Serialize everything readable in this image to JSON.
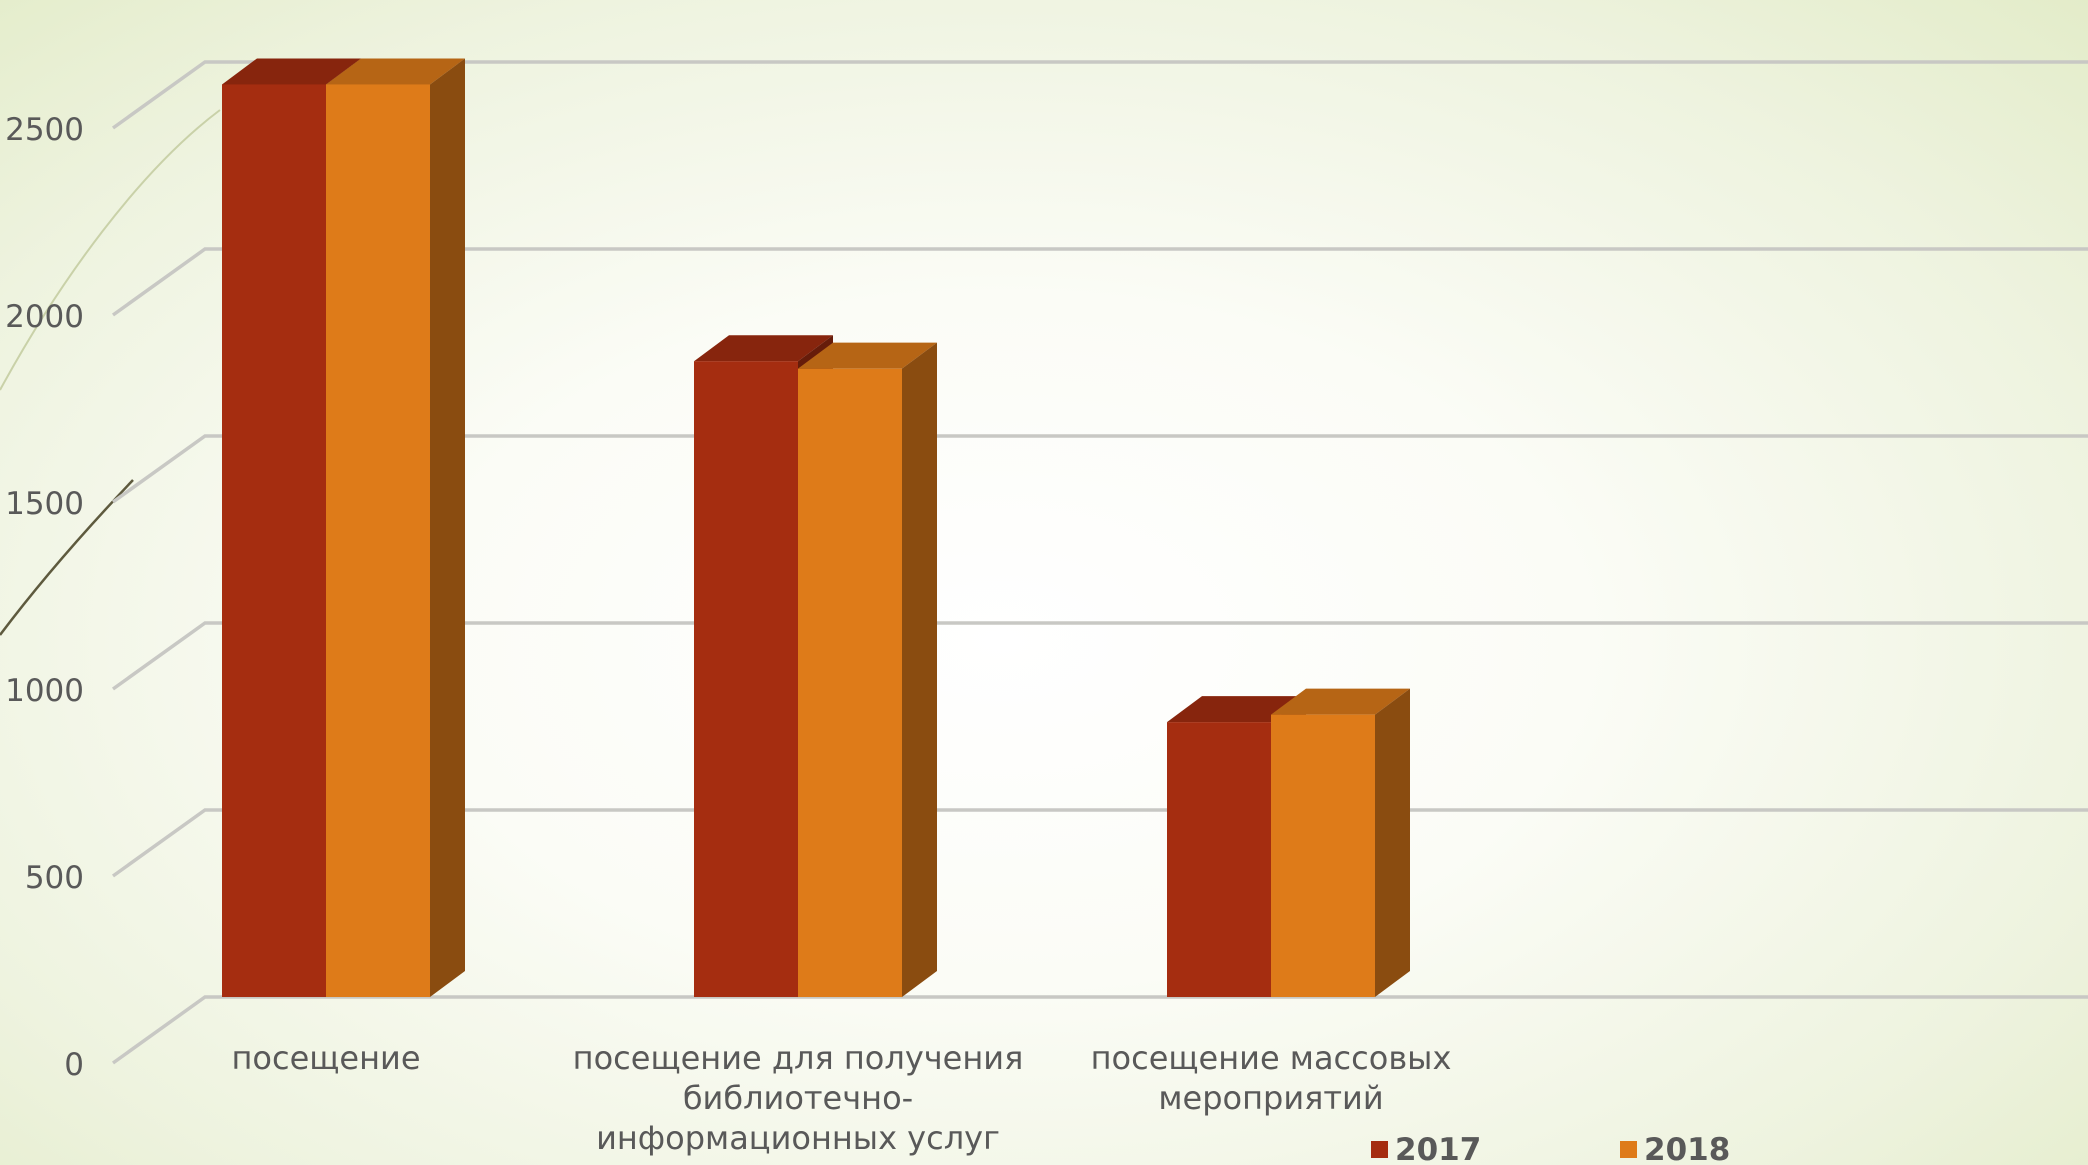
{
  "chart_data": {
    "type": "bar",
    "categories": [
      [
        "посещение"
      ],
      [
        "посещение для получения",
        "библиотечно-",
        "информационных услуг"
      ],
      [
        "посещение массовых",
        "мероприятий"
      ]
    ],
    "series": [
      {
        "name": "2017",
        "values": [
          2440,
          1700,
          735
        ],
        "color": "#a52d10"
      },
      {
        "name": "2018",
        "values": [
          2440,
          1680,
          755
        ],
        "color": "#de7b19"
      }
    ],
    "ylim": [
      0,
      2500
    ],
    "yticks": [
      0,
      500,
      1000,
      1500,
      2000,
      2500
    ],
    "grid": true,
    "legend": "bottom",
    "title": "",
    "xlabel": "",
    "ylabel": ""
  }
}
